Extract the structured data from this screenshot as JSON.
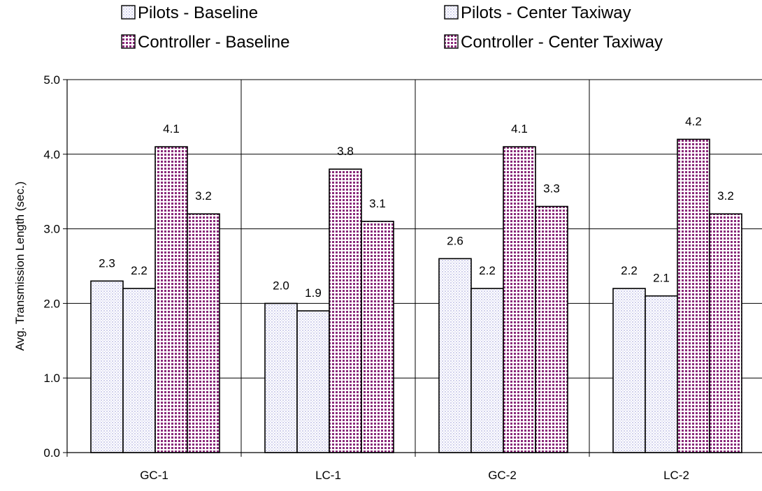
{
  "chart_data": {
    "type": "bar",
    "categories": [
      "GC-1",
      "LC-1",
      "GC-2",
      "LC-2"
    ],
    "series": [
      {
        "name": "Pilots - Baseline",
        "values": [
          2.3,
          2.0,
          2.6,
          2.2
        ],
        "style": "pilot",
        "color": "#c8c8e8"
      },
      {
        "name": "Pilots - Center Taxiway",
        "values": [
          2.2,
          1.9,
          2.2,
          2.1
        ],
        "style": "pilot",
        "color": "#c8c8e8"
      },
      {
        "name": "Controller - Baseline",
        "values": [
          4.1,
          3.8,
          4.1,
          4.2
        ],
        "style": "controller",
        "color": "#8a2a7a"
      },
      {
        "name": "Controller - Center Taxiway",
        "values": [
          3.2,
          3.1,
          3.3,
          3.2
        ],
        "style": "controller",
        "color": "#8a2a7a"
      }
    ],
    "data_labels": [
      [
        "2.3",
        "2.2",
        "4.1",
        "3.2"
      ],
      [
        "2.0",
        "1.9",
        "3.8",
        "3.1"
      ],
      [
        "2.6",
        "2.2",
        "4.1",
        "3.3"
      ],
      [
        "2.2",
        "2.1",
        "4.2",
        "3.2"
      ]
    ],
    "ylabel": "Avg. Transmission Length (sec.)",
    "xlabel": "",
    "title": "",
    "ylim": [
      0,
      5
    ],
    "yticks": [
      "0.0",
      "1.0",
      "2.0",
      "3.0",
      "4.0",
      "5.0"
    ],
    "grid": true,
    "legend_position": "top"
  }
}
